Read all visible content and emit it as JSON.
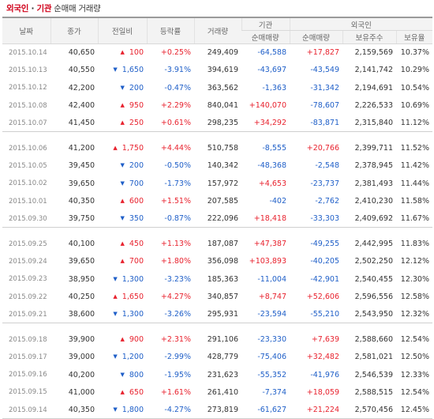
{
  "title": {
    "part1": "외국인",
    "sep": " · ",
    "part2": "기관",
    "part3": " 순매매 거래량"
  },
  "headers": {
    "date": "날짜",
    "close": "종가",
    "change": "전일비",
    "rate": "등락률",
    "volume": "거래량",
    "inst_group": "기관",
    "foreign_group": "외국인",
    "inst_net": "순매매량",
    "foreign_net": "순매매량",
    "foreign_hold": "보유주수",
    "foreign_pct": "보유율"
  },
  "groups": [
    [
      {
        "date": "2015.10.14",
        "close": "40,650",
        "dir": "up",
        "change": "100",
        "rate": "+0.25%",
        "volume": "249,409",
        "inst": "-64,588",
        "foreign": "+17,827",
        "hold": "2,159,569",
        "pct": "10.37%"
      },
      {
        "date": "2015.10.13",
        "close": "40,550",
        "dir": "down",
        "change": "1,650",
        "rate": "-3.91%",
        "volume": "394,619",
        "inst": "-43,697",
        "foreign": "-43,549",
        "hold": "2,141,742",
        "pct": "10.29%"
      },
      {
        "date": "2015.10.12",
        "close": "42,200",
        "dir": "down",
        "change": "200",
        "rate": "-0.47%",
        "volume": "363,562",
        "inst": "-1,363",
        "foreign": "-31,342",
        "hold": "2,194,691",
        "pct": "10.54%"
      },
      {
        "date": "2015.10.08",
        "close": "42,400",
        "dir": "up",
        "change": "950",
        "rate": "+2.29%",
        "volume": "840,041",
        "inst": "+140,070",
        "foreign": "-78,607",
        "hold": "2,226,533",
        "pct": "10.69%"
      },
      {
        "date": "2015.10.07",
        "close": "41,450",
        "dir": "up",
        "change": "250",
        "rate": "+0.61%",
        "volume": "298,235",
        "inst": "+34,292",
        "foreign": "-83,871",
        "hold": "2,315,840",
        "pct": "11.12%"
      }
    ],
    [
      {
        "date": "2015.10.06",
        "close": "41,200",
        "dir": "up",
        "change": "1,750",
        "rate": "+4.44%",
        "volume": "510,758",
        "inst": "-8,555",
        "foreign": "+20,766",
        "hold": "2,399,711",
        "pct": "11.52%"
      },
      {
        "date": "2015.10.05",
        "close": "39,450",
        "dir": "down",
        "change": "200",
        "rate": "-0.50%",
        "volume": "140,342",
        "inst": "-48,368",
        "foreign": "-2,548",
        "hold": "2,378,945",
        "pct": "11.42%"
      },
      {
        "date": "2015.10.02",
        "close": "39,650",
        "dir": "down",
        "change": "700",
        "rate": "-1.73%",
        "volume": "157,972",
        "inst": "+4,653",
        "foreign": "-23,737",
        "hold": "2,381,493",
        "pct": "11.44%"
      },
      {
        "date": "2015.10.01",
        "close": "40,350",
        "dir": "up",
        "change": "600",
        "rate": "+1.51%",
        "volume": "207,585",
        "inst": "-402",
        "foreign": "-2,762",
        "hold": "2,410,230",
        "pct": "11.58%"
      },
      {
        "date": "2015.09.30",
        "close": "39,750",
        "dir": "down",
        "change": "350",
        "rate": "-0.87%",
        "volume": "222,096",
        "inst": "+18,418",
        "foreign": "-33,303",
        "hold": "2,409,692",
        "pct": "11.67%"
      }
    ],
    [
      {
        "date": "2015.09.25",
        "close": "40,100",
        "dir": "up",
        "change": "450",
        "rate": "+1.13%",
        "volume": "187,087",
        "inst": "+47,387",
        "foreign": "-49,255",
        "hold": "2,442,995",
        "pct": "11.83%"
      },
      {
        "date": "2015.09.24",
        "close": "39,650",
        "dir": "up",
        "change": "700",
        "rate": "+1.80%",
        "volume": "356,098",
        "inst": "+103,893",
        "foreign": "-40,205",
        "hold": "2,502,250",
        "pct": "12.12%"
      },
      {
        "date": "2015.09.23",
        "close": "38,950",
        "dir": "down",
        "change": "1,300",
        "rate": "-3.23%",
        "volume": "185,363",
        "inst": "-11,004",
        "foreign": "-42,901",
        "hold": "2,540,455",
        "pct": "12.30%"
      },
      {
        "date": "2015.09.22",
        "close": "40,250",
        "dir": "up",
        "change": "1,650",
        "rate": "+4.27%",
        "volume": "340,857",
        "inst": "+8,747",
        "foreign": "+52,606",
        "hold": "2,596,556",
        "pct": "12.58%"
      },
      {
        "date": "2015.09.21",
        "close": "38,600",
        "dir": "down",
        "change": "1,300",
        "rate": "-3.26%",
        "volume": "295,931",
        "inst": "-23,594",
        "foreign": "-55,210",
        "hold": "2,543,950",
        "pct": "12.32%"
      }
    ],
    [
      {
        "date": "2015.09.18",
        "close": "39,900",
        "dir": "up",
        "change": "900",
        "rate": "+2.31%",
        "volume": "291,106",
        "inst": "-23,330",
        "foreign": "+7,639",
        "hold": "2,588,660",
        "pct": "12.54%"
      },
      {
        "date": "2015.09.17",
        "close": "39,000",
        "dir": "down",
        "change": "1,200",
        "rate": "-2.99%",
        "volume": "428,779",
        "inst": "-75,406",
        "foreign": "+32,482",
        "hold": "2,581,021",
        "pct": "12.50%"
      },
      {
        "date": "2015.09.16",
        "close": "40,200",
        "dir": "down",
        "change": "800",
        "rate": "-1.95%",
        "volume": "231,623",
        "inst": "-55,352",
        "foreign": "-41,976",
        "hold": "2,546,539",
        "pct": "12.33%"
      },
      {
        "date": "2015.09.15",
        "close": "41,000",
        "dir": "up",
        "change": "650",
        "rate": "+1.61%",
        "volume": "261,410",
        "inst": "-7,374",
        "foreign": "+18,059",
        "hold": "2,588,515",
        "pct": "12.54%"
      },
      {
        "date": "2015.09.14",
        "close": "40,350",
        "dir": "down",
        "change": "1,800",
        "rate": "-4.27%",
        "volume": "273,819",
        "inst": "-61,627",
        "foreign": "+21,224",
        "hold": "2,570,456",
        "pct": "12.45%"
      }
    ]
  ],
  "colors": {
    "up": "#e8222e",
    "down": "#1f5fc8",
    "title_accent": "#d0021b"
  }
}
